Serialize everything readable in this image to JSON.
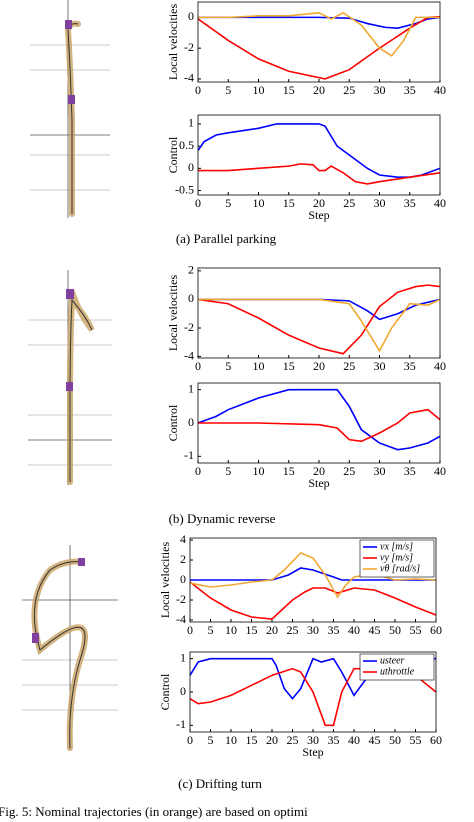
{
  "chart_data": [
    {
      "type": "line",
      "ylabel": "Local velocities",
      "xlim": [
        0,
        40
      ],
      "ylim": [
        -4.2,
        1.0
      ],
      "xticks": [
        0,
        5,
        10,
        15,
        20,
        25,
        30,
        35,
        40
      ],
      "yticks": [
        -4,
        -2,
        0
      ],
      "series": [
        {
          "color": "#0000ff",
          "x": [
            0,
            5,
            10,
            15,
            20,
            25,
            28,
            31,
            33,
            36,
            38,
            40
          ],
          "values": [
            0,
            0,
            0,
            0,
            0,
            -0.05,
            -0.4,
            -0.65,
            -0.7,
            -0.4,
            -0.1,
            0
          ]
        },
        {
          "color": "#ff0000",
          "x": [
            0,
            5,
            10,
            15,
            21,
            25,
            30,
            35,
            38,
            40
          ],
          "values": [
            -0.1,
            -1.5,
            -2.7,
            -3.5,
            -4,
            -3.4,
            -2,
            -0.7,
            0,
            0.05
          ]
        },
        {
          "color": "#f0a830",
          "x": [
            0,
            5,
            10,
            15,
            20,
            22,
            24,
            27,
            30,
            32,
            34,
            36,
            40
          ],
          "values": [
            0,
            0,
            0.1,
            0.1,
            0.3,
            -0.1,
            0.3,
            -0.5,
            -2,
            -2.5,
            -1.5,
            0,
            0
          ]
        }
      ]
    },
    {
      "type": "line",
      "ylabel": "Control",
      "xlabel": "Step",
      "xlim": [
        0,
        40
      ],
      "ylim": [
        -0.6,
        1.2
      ],
      "xticks": [
        0,
        5,
        10,
        15,
        20,
        25,
        30,
        35,
        40
      ],
      "yticks": [
        -0.5,
        0,
        0.5,
        1
      ],
      "series": [
        {
          "color": "#0000ff",
          "x": [
            0,
            1,
            3,
            5,
            10,
            13,
            15,
            20,
            21,
            23,
            25,
            28,
            30,
            33,
            35,
            37,
            40
          ],
          "values": [
            0.4,
            0.6,
            0.75,
            0.8,
            0.9,
            1,
            1,
            1,
            0.95,
            0.5,
            0.3,
            0,
            -0.15,
            -0.2,
            -0.2,
            -0.15,
            0
          ]
        },
        {
          "color": "#ff0000",
          "x": [
            0,
            5,
            10,
            15,
            17,
            19,
            20,
            21,
            22,
            24,
            26,
            28,
            30,
            35,
            40
          ],
          "values": [
            -0.05,
            -0.05,
            0,
            0.05,
            0.1,
            0.08,
            -0.05,
            -0.05,
            0.05,
            -0.1,
            -0.3,
            -0.35,
            -0.3,
            -0.2,
            -0.1
          ]
        }
      ]
    },
    {
      "type": "line",
      "ylabel": "Local velocities",
      "xlim": [
        0,
        40
      ],
      "ylim": [
        -4.1,
        2.2
      ],
      "xticks": [
        0,
        5,
        10,
        15,
        20,
        25,
        30,
        35,
        40
      ],
      "yticks": [
        -4,
        -2,
        0,
        2
      ],
      "series": [
        {
          "color": "#0000ff",
          "x": [
            0,
            10,
            20,
            25,
            28,
            30,
            33,
            36,
            40
          ],
          "values": [
            0,
            0,
            0,
            -0.1,
            -0.8,
            -1.4,
            -1,
            -0.4,
            0
          ]
        },
        {
          "color": "#ff0000",
          "x": [
            0,
            5,
            10,
            15,
            20,
            24,
            27,
            30,
            33,
            36,
            38,
            40
          ],
          "values": [
            0,
            -0.3,
            -1.3,
            -2.5,
            -3.4,
            -3.8,
            -2.5,
            -0.5,
            0.5,
            0.9,
            1.0,
            0.9
          ]
        },
        {
          "color": "#f0a830",
          "x": [
            0,
            10,
            20,
            25,
            27,
            30,
            32,
            35,
            38,
            40
          ],
          "values": [
            0,
            0,
            0,
            -0.3,
            -1.5,
            -3.6,
            -2,
            -0.3,
            -0.4,
            0
          ]
        }
      ]
    },
    {
      "type": "line",
      "ylabel": "Control",
      "xlabel": "Step",
      "xlim": [
        0,
        40
      ],
      "ylim": [
        -1.2,
        1.2
      ],
      "xticks": [
        0,
        5,
        10,
        15,
        20,
        25,
        30,
        35,
        40
      ],
      "yticks": [
        -1,
        0,
        1
      ],
      "series": [
        {
          "color": "#0000ff",
          "x": [
            0,
            3,
            5,
            10,
            15,
            20,
            23,
            25,
            27,
            30,
            33,
            35,
            38,
            40
          ],
          "values": [
            0,
            0.2,
            0.4,
            0.75,
            1,
            1,
            1,
            0.5,
            -0.2,
            -0.6,
            -0.8,
            -0.75,
            -0.6,
            -0.4
          ]
        },
        {
          "color": "#ff0000",
          "x": [
            0,
            10,
            20,
            23,
            25,
            27,
            30,
            33,
            35,
            38,
            40
          ],
          "values": [
            0,
            0,
            -0.05,
            -0.15,
            -0.5,
            -0.55,
            -0.3,
            0,
            0.3,
            0.4,
            0.1
          ]
        }
      ]
    },
    {
      "type": "line",
      "ylabel": "Local velocities",
      "xlim": [
        0,
        60
      ],
      "ylim": [
        -4.2,
        4.2
      ],
      "xticks": [
        0,
        5,
        10,
        15,
        20,
        25,
        30,
        35,
        40,
        45,
        50,
        55,
        60
      ],
      "yticks": [
        -4,
        -2,
        0,
        2,
        4
      ],
      "legend": "upper right",
      "series": [
        {
          "name": "vx [m/s]",
          "color": "#0000ff",
          "x": [
            0,
            10,
            20,
            24,
            27,
            30,
            35,
            37,
            40,
            45,
            60
          ],
          "values": [
            0,
            0,
            0,
            0.5,
            1.2,
            1,
            0.3,
            0,
            0,
            0,
            0
          ]
        },
        {
          "name": "vy [m/s]",
          "color": "#ff0000",
          "x": [
            0,
            5,
            10,
            15,
            20,
            25,
            28,
            30,
            33,
            36,
            40,
            45,
            50,
            55,
            60
          ],
          "values": [
            -0.2,
            -1.8,
            -3,
            -3.7,
            -3.9,
            -2,
            -1.2,
            -0.8,
            -0.8,
            -1.3,
            -0.8,
            -1,
            -1.8,
            -2.7,
            -3.5
          ]
        },
        {
          "name": "vθ [rad/s]",
          "color": "#f0a830",
          "x": [
            0,
            5,
            10,
            15,
            20,
            23,
            27,
            30,
            33,
            36,
            38,
            40,
            45,
            50,
            55,
            60
          ],
          "values": [
            -0.3,
            -0.7,
            -0.5,
            -0.2,
            0,
            1,
            2.7,
            2.2,
            0.5,
            -1.7,
            -0.5,
            0.3,
            0.6,
            0,
            0.1,
            0
          ]
        }
      ]
    },
    {
      "type": "line",
      "ylabel": "Control",
      "xlabel": "Step",
      "xlim": [
        0,
        60
      ],
      "ylim": [
        -1.2,
        1.2
      ],
      "xticks": [
        0,
        5,
        10,
        15,
        20,
        25,
        30,
        35,
        40,
        45,
        50,
        55,
        60
      ],
      "yticks": [
        -1,
        0,
        1
      ],
      "legend": "upper right",
      "series": [
        {
          "name": "usteer",
          "color": "#0000ff",
          "x": [
            0,
            2,
            5,
            10,
            15,
            20,
            21,
            23,
            25,
            27,
            30,
            32,
            35,
            37,
            40,
            43,
            45,
            50,
            55,
            60
          ],
          "values": [
            0.5,
            0.9,
            1,
            1,
            1,
            1,
            0.8,
            0.1,
            -0.2,
            0.1,
            1,
            0.9,
            1,
            0.6,
            -0.1,
            0.4,
            0.7,
            1,
            1,
            1
          ]
        },
        {
          "name": "uthrottle",
          "color": "#ff0000",
          "x": [
            0,
            2,
            5,
            10,
            15,
            20,
            25,
            27,
            30,
            33,
            35,
            37,
            40,
            45,
            50,
            55,
            60
          ],
          "values": [
            -0.2,
            -0.35,
            -0.3,
            -0.1,
            0.2,
            0.5,
            0.7,
            0.6,
            0,
            -1,
            -1,
            0,
            0.7,
            0.7,
            0.6,
            0.5,
            0
          ]
        }
      ]
    }
  ],
  "captions": [
    "(a) Parallel parking",
    "(b) Dynamic reverse",
    "(c) Drifting turn"
  ],
  "figure_caption": "Fig. 5: Nominal trajectories (in orange) are based on optimi"
}
